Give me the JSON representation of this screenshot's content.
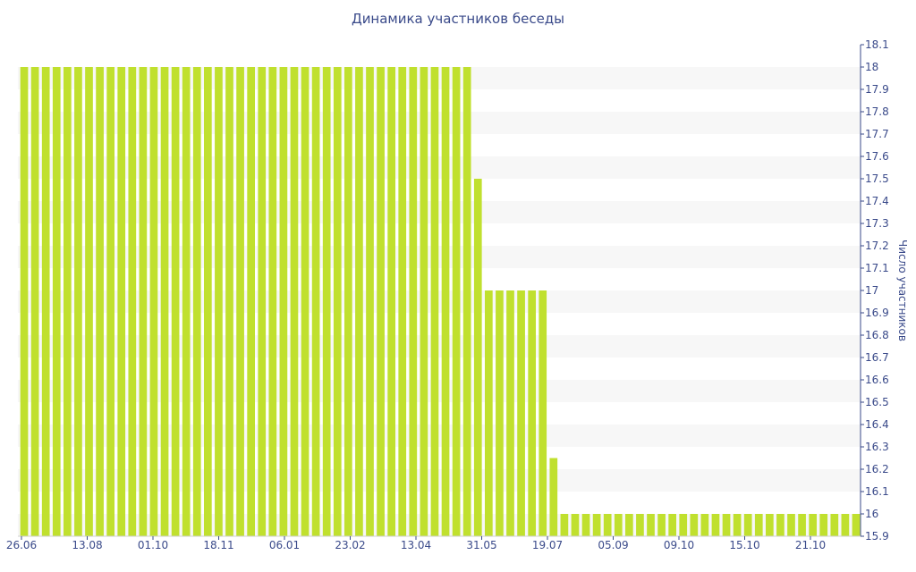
{
  "chart_data": {
    "type": "bar",
    "title": "Динамика участников беседы",
    "xlabel": "",
    "ylabel": "Число участников",
    "ylim": [
      15.9,
      18.1
    ],
    "y_axis_position": "right",
    "y_ticks": [
      "15.9",
      "16",
      "16.1",
      "16.2",
      "16.3",
      "16.4",
      "16.5",
      "16.6",
      "16.7",
      "16.8",
      "16.9",
      "17",
      "17.1",
      "17.2",
      "17.3",
      "17.4",
      "17.5",
      "17.6",
      "17.7",
      "17.8",
      "17.9",
      "18",
      "18.1"
    ],
    "x_tick_labels": [
      "26.06",
      "13.08",
      "01.10",
      "18.11",
      "06.01",
      "23.02",
      "13.04",
      "31.05",
      "19.07",
      "05.09",
      "09.10",
      "15.10",
      "21.10"
    ],
    "grid": "horizontal alternating bands",
    "bar_color": "#c0e02e",
    "values": [
      18,
      18,
      18,
      18,
      18,
      18,
      18,
      18,
      18,
      18,
      18,
      18,
      18,
      18,
      18,
      18,
      18,
      18,
      18,
      18,
      18,
      18,
      18,
      18,
      18,
      18,
      18,
      18,
      18,
      18,
      18,
      18,
      18,
      18,
      18,
      18,
      18,
      18,
      18,
      18,
      18,
      18,
      17.5,
      17,
      17,
      17,
      17,
      17,
      17,
      16.25,
      16,
      16,
      16,
      16,
      16,
      16,
      16,
      16,
      16,
      16,
      16,
      16,
      16,
      16,
      16,
      16,
      16,
      16,
      16,
      16,
      16,
      16,
      16,
      16,
      16,
      16,
      16,
      16
    ]
  }
}
